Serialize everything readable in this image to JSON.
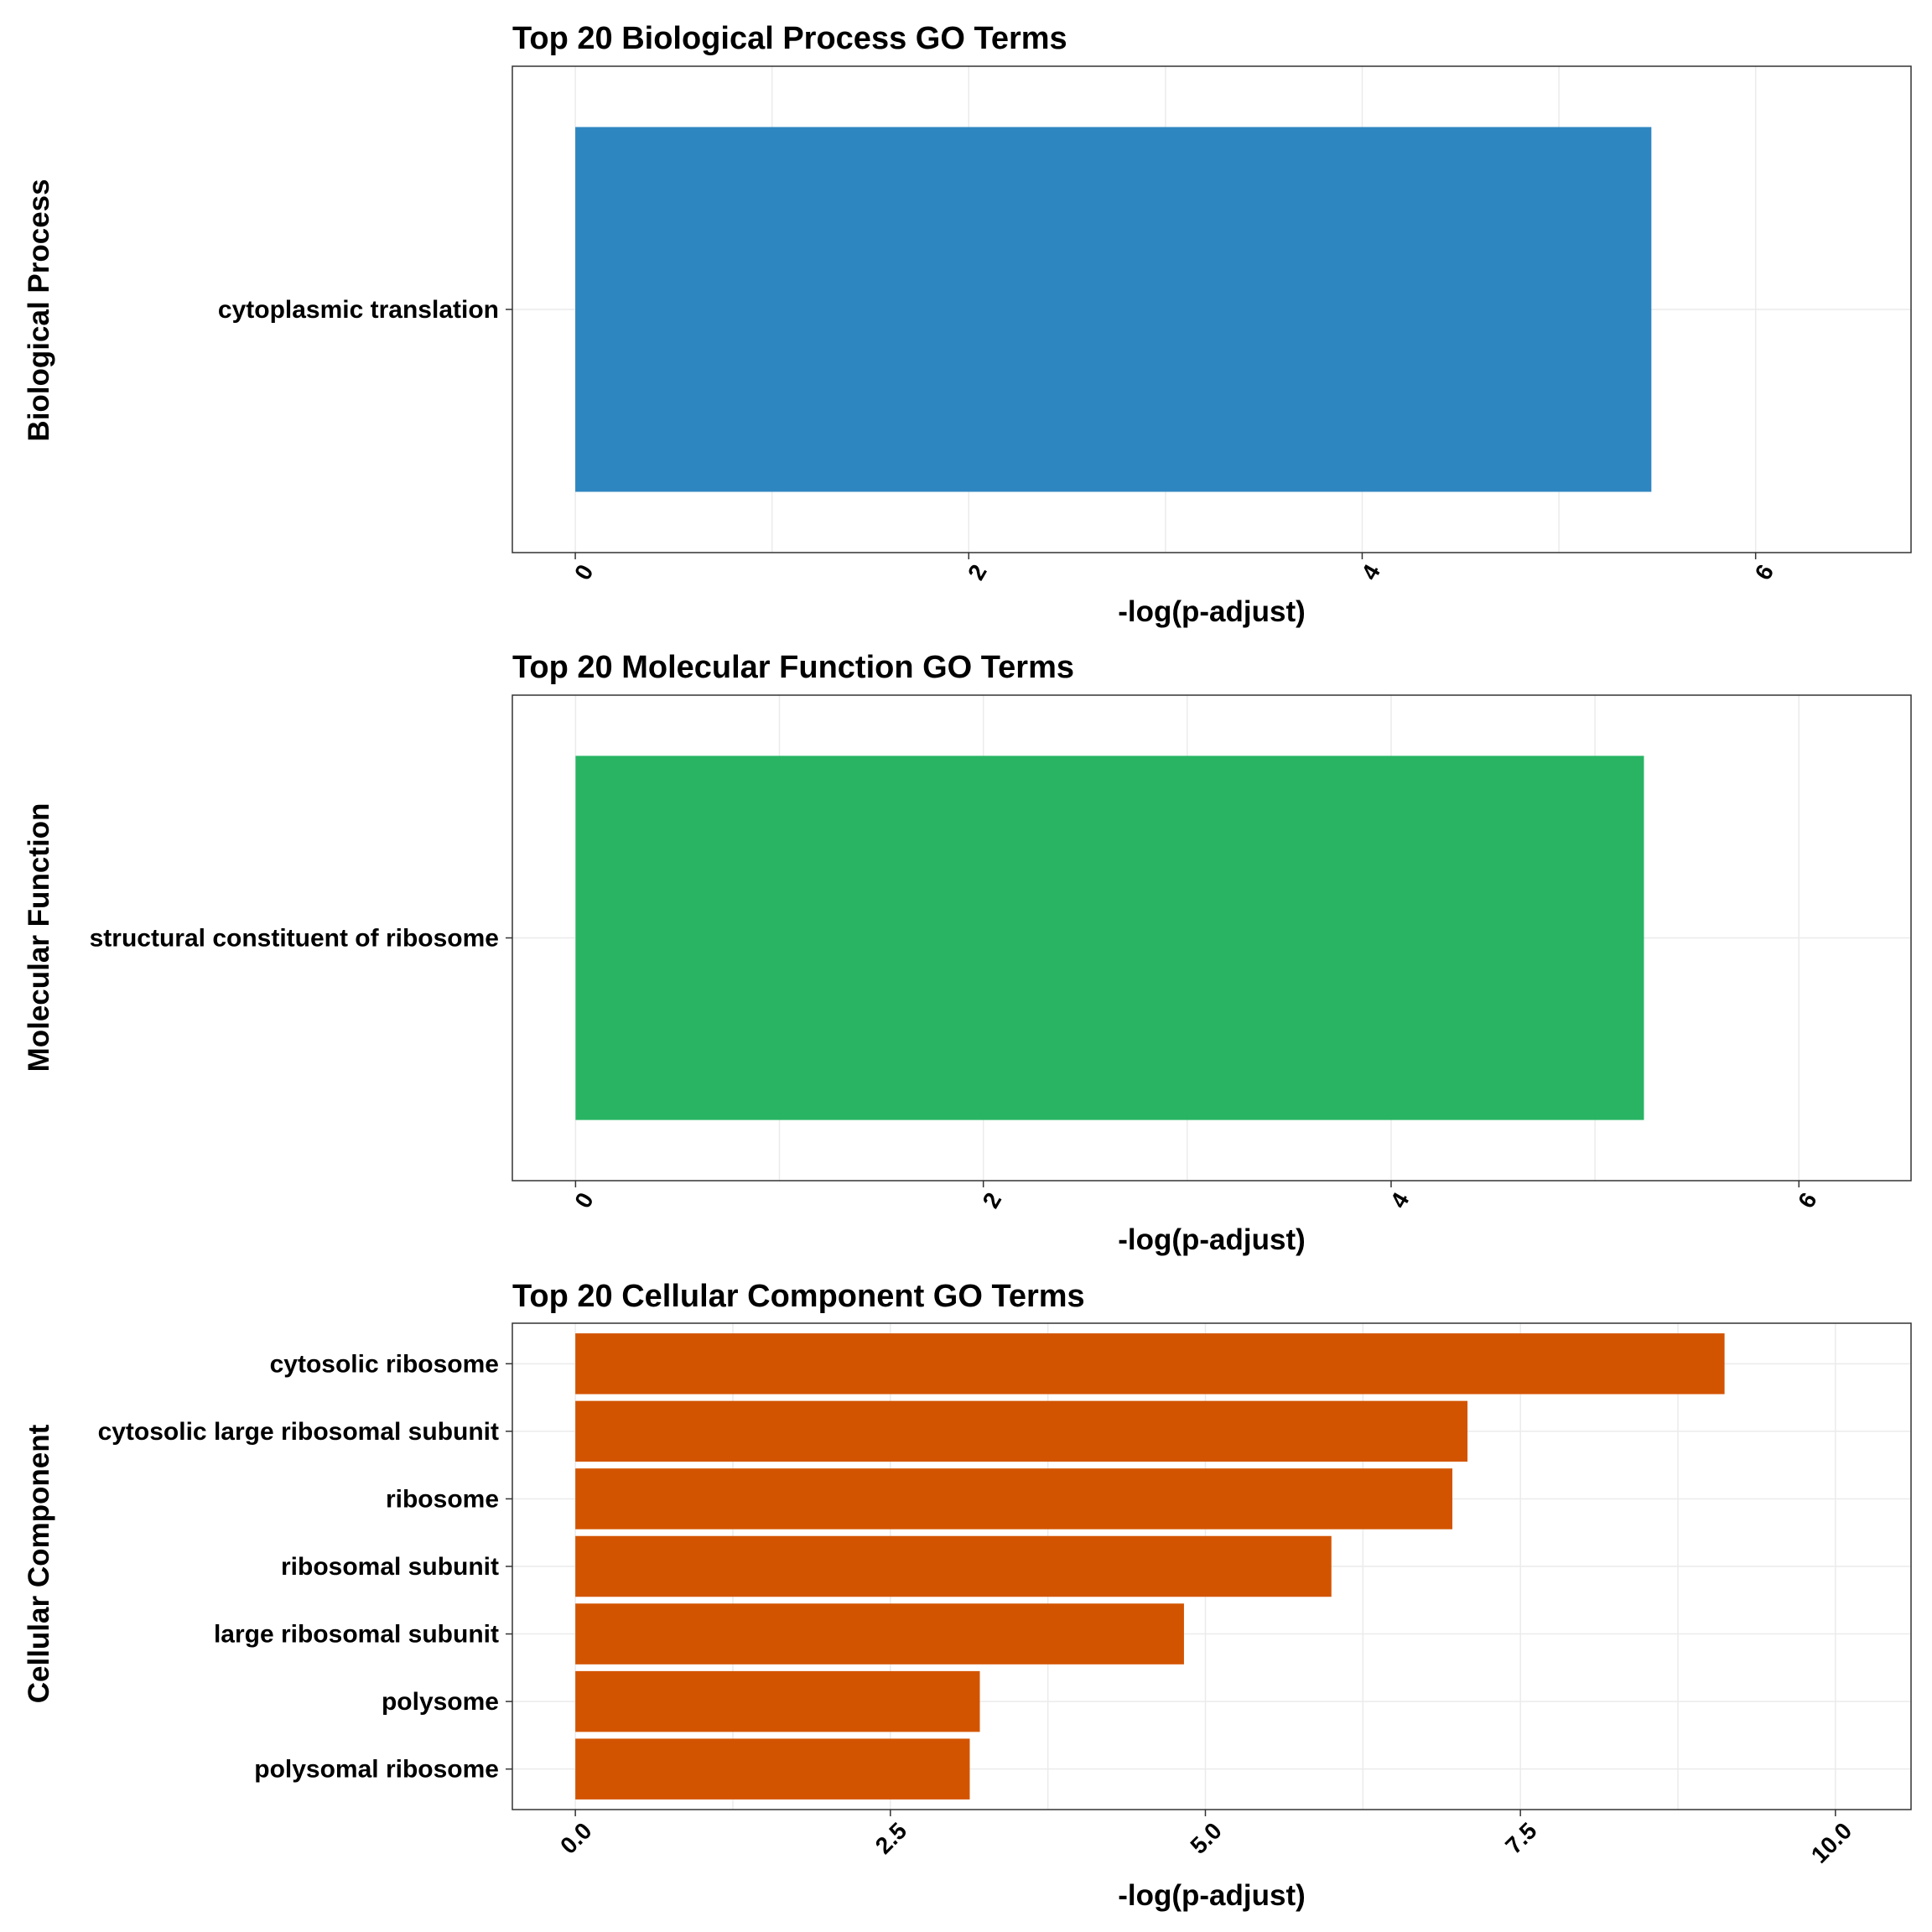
{
  "chart_data": [
    {
      "type": "bar",
      "orientation": "horizontal",
      "title": "Top 20 Biological Process GO Terms",
      "ylabel": "Biological Process",
      "xlabel": "-log(p-adjust)",
      "categories": [
        "cytoplasmic translation"
      ],
      "values": [
        5.47
      ],
      "xlim": [
        -0.32,
        6.79
      ],
      "xticks": [
        "0",
        "2",
        "4",
        "6"
      ],
      "xtick_values": [
        0,
        2,
        4,
        6
      ],
      "bar_color": "#2E86C1",
      "grid": true
    },
    {
      "type": "bar",
      "orientation": "horizontal",
      "title": "Top 20 Molecular Function GO Terms",
      "ylabel": "Molecular Function",
      "xlabel": "-log(p-adjust)",
      "categories": [
        "structural constituent of ribosome"
      ],
      "values": [
        5.24
      ],
      "xlim": [
        -0.31,
        6.55
      ],
      "xticks": [
        "0",
        "2",
        "4",
        "6"
      ],
      "xtick_values": [
        0,
        2,
        4,
        6
      ],
      "bar_color": "#28B463",
      "grid": true
    },
    {
      "type": "bar",
      "orientation": "horizontal",
      "title": "Top 20 Cellular Component GO Terms",
      "ylabel": "Cellular Component",
      "xlabel": "-log(p-adjust)",
      "categories": [
        "cytosolic ribosome",
        "cytosolic large ribosomal subunit",
        "ribosome",
        "ribosomal subunit",
        "large ribosomal subunit",
        "polysome",
        "polysomal ribosome"
      ],
      "values": [
        9.12,
        7.08,
        6.96,
        6.0,
        4.83,
        3.21,
        3.13
      ],
      "xlim": [
        -0.5,
        10.6
      ],
      "xticks": [
        "0.0",
        "2.5",
        "5.0",
        "7.5",
        "10.0"
      ],
      "xtick_values": [
        0,
        2.5,
        5,
        7.5,
        10
      ],
      "bar_color": "#D35400",
      "grid": true
    }
  ]
}
